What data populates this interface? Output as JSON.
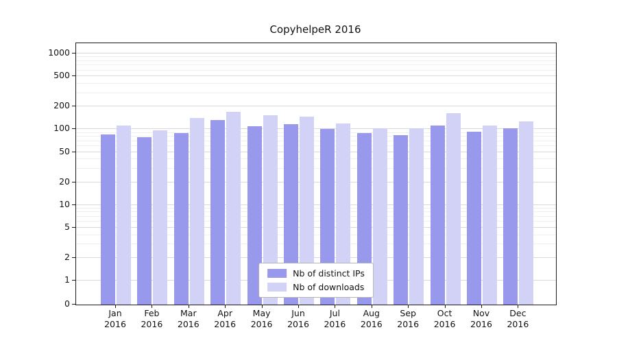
{
  "chart_data": {
    "type": "bar",
    "title": "CopyhelpeR 2016",
    "categories": [
      "Jan 2016",
      "Feb 2016",
      "Mar 2016",
      "Apr 2016",
      "May 2016",
      "Jun 2016",
      "Jul 2016",
      "Aug 2016",
      "Sep 2016",
      "Oct 2016",
      "Nov 2016",
      "Dec 2016"
    ],
    "series": [
      {
        "name": "Nb of distinct IPs",
        "color": "#9898ec",
        "values": [
          85,
          78,
          90,
          133,
          110,
          118,
          100,
          89,
          83,
          113,
          93,
          103
        ]
      },
      {
        "name": "Nb of downloads",
        "color": "#d2d2f6",
        "values": [
          113,
          96,
          140,
          172,
          152,
          148,
          120,
          104,
          104,
          163,
          112,
          127
        ]
      }
    ],
    "y_scale": "symlog",
    "y_ticks": [
      0,
      1,
      2,
      5,
      10,
      20,
      50,
      100,
      200,
      500,
      1000
    ],
    "y_minor_ticks": [
      3,
      4,
      6,
      7,
      8,
      9,
      30,
      40,
      60,
      70,
      80,
      90,
      300,
      400,
      600,
      700,
      800,
      900
    ],
    "ylim": [
      0,
      1300
    ],
    "xlabel": "",
    "ylabel": "",
    "grid": true,
    "legend_position": "lower center",
    "colors": {
      "major_grid": "#d9d9d9",
      "minor_grid": "#efefef",
      "axis": "#1a1a1a",
      "background": "#ffffff"
    }
  }
}
